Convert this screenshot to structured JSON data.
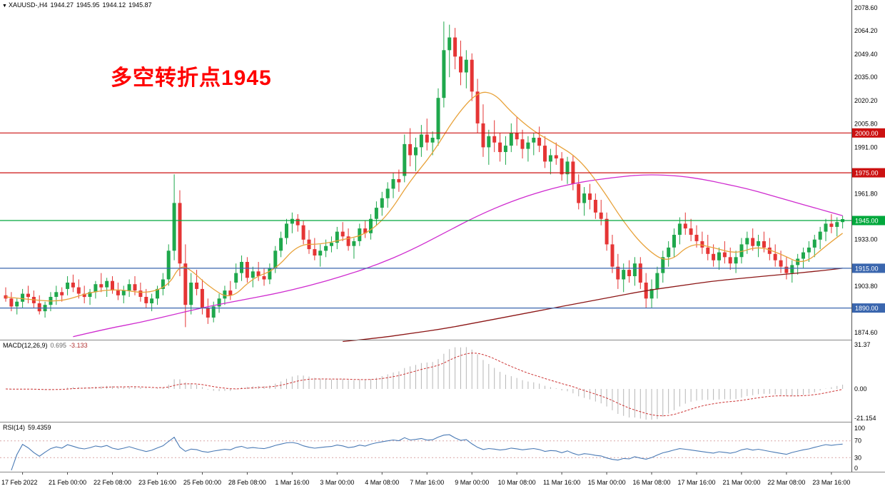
{
  "window": {
    "symbol_info": {
      "symbol": "XAUUSD-,H4",
      "open": "1944.27",
      "high": "1945.95",
      "low": "1944.12",
      "close": "1945.87"
    }
  },
  "annotation": {
    "text": "多空转折点1945",
    "color": "#ff0000"
  },
  "colors": {
    "bull": "#1fa84c",
    "bear": "#e53535",
    "hline_red": "#cc1111",
    "hline_green": "#00a83c",
    "hline_blue": "#3a66ae",
    "ma_fast": "#e8a23a",
    "ma_mid": "#cf2bcf",
    "ma_slow": "#8c1616",
    "macd_hist": "#b6b6b6",
    "macd_signal": "#cc3333",
    "rsi_line": "#4a7ab5",
    "rsi_level": "#d9a6a6",
    "axis_text": "#000000",
    "separator": "#888888"
  },
  "chart_data": {
    "type": "candlestick",
    "title": "XAUUSD H4 chart with MACD and RSI",
    "symbol": "XAUUSD",
    "timeframe": "H4",
    "price_axis": {
      "ticks": [
        2078.6,
        2064.2,
        2049.4,
        2035.0,
        2020.2,
        2005.8,
        1991.0,
        1961.8,
        1933.0,
        1903.8,
        1874.6
      ]
    },
    "hlines": [
      {
        "price": 2000.0,
        "label": "2000.00",
        "color": "#cc1111"
      },
      {
        "price": 1975.0,
        "label": "1975.00",
        "color": "#cc1111"
      },
      {
        "price": 1945.0,
        "label": "1945.00",
        "color": "#00a83c"
      },
      {
        "price": 1915.0,
        "label": "1915.00",
        "color": "#3a66ae"
      },
      {
        "price": 1890.0,
        "label": "1890.00",
        "color": "#3a66ae"
      }
    ],
    "time_labels": [
      "17 Feb 2022",
      "21 Feb 00:00",
      "22 Feb 08:00",
      "23 Feb 16:00",
      "25 Feb 00:00",
      "28 Feb 08:00",
      "1 Mar 16:00",
      "3 Mar 00:00",
      "4 Mar 08:00",
      "7 Mar 16:00",
      "9 Mar 00:00",
      "10 Mar 08:00",
      "11 Mar 16:00",
      "15 Mar 00:00",
      "16 Mar 08:00",
      "17 Mar 16:00",
      "21 Mar 00:00",
      "22 Mar 08:00",
      "23 Mar 16:00"
    ],
    "candles": [
      [
        1898,
        1903,
        1894,
        1896
      ],
      [
        1896,
        1900,
        1888,
        1891
      ],
      [
        1891,
        1896,
        1886,
        1894
      ],
      [
        1894,
        1902,
        1890,
        1899
      ],
      [
        1899,
        1904,
        1893,
        1897
      ],
      [
        1897,
        1901,
        1890,
        1893
      ],
      [
        1893,
        1898,
        1886,
        1888
      ],
      [
        1888,
        1894,
        1884,
        1892
      ],
      [
        1892,
        1900,
        1888,
        1897
      ],
      [
        1897,
        1904,
        1892,
        1900
      ],
      [
        1900,
        1903,
        1894,
        1898
      ],
      [
        1902,
        1910,
        1898,
        1906
      ],
      [
        1906,
        1911,
        1900,
        1903
      ],
      [
        1903,
        1908,
        1896,
        1899
      ],
      [
        1899,
        1904,
        1893,
        1897
      ],
      [
        1897,
        1902,
        1892,
        1900
      ],
      [
        1900,
        1907,
        1896,
        1905
      ],
      [
        1905,
        1912,
        1900,
        1903
      ],
      [
        1903,
        1909,
        1897,
        1907
      ],
      [
        1907,
        1910,
        1899,
        1901
      ],
      [
        1901,
        1906,
        1895,
        1898
      ],
      [
        1898,
        1904,
        1893,
        1901
      ],
      [
        1901,
        1908,
        1897,
        1905
      ],
      [
        1905,
        1910,
        1898,
        1901
      ],
      [
        1901,
        1906,
        1894,
        1897
      ],
      [
        1897,
        1902,
        1890,
        1893
      ],
      [
        1893,
        1899,
        1888,
        1896
      ],
      [
        1896,
        1904,
        1892,
        1902
      ],
      [
        1902,
        1912,
        1898,
        1908
      ],
      [
        1908,
        1930,
        1904,
        1926
      ],
      [
        1926,
        1974,
        1920,
        1956
      ],
      [
        1956,
        1964,
        1910,
        1918
      ],
      [
        1918,
        1930,
        1878,
        1892
      ],
      [
        1892,
        1912,
        1886,
        1906
      ],
      [
        1906,
        1914,
        1898,
        1902
      ],
      [
        1902,
        1908,
        1886,
        1890
      ],
      [
        1890,
        1896,
        1880,
        1884
      ],
      [
        1884,
        1894,
        1881,
        1891
      ],
      [
        1891,
        1899,
        1887,
        1896
      ],
      [
        1896,
        1904,
        1892,
        1901
      ],
      [
        1901,
        1907,
        1895,
        1898
      ],
      [
        1906,
        1918,
        1902,
        1912
      ],
      [
        1912,
        1923,
        1907,
        1919
      ],
      [
        1919,
        1922,
        1906,
        1909
      ],
      [
        1909,
        1916,
        1903,
        1913
      ],
      [
        1913,
        1919,
        1907,
        1910
      ],
      [
        1910,
        1915,
        1904,
        1908
      ],
      [
        1908,
        1918,
        1905,
        1915
      ],
      [
        1915,
        1929,
        1912,
        1926
      ],
      [
        1926,
        1938,
        1922,
        1934
      ],
      [
        1934,
        1946,
        1930,
        1943
      ],
      [
        1943,
        1950,
        1937,
        1946
      ],
      [
        1946,
        1949,
        1938,
        1942
      ],
      [
        1942,
        1945,
        1930,
        1933
      ],
      [
        1933,
        1939,
        1924,
        1927
      ],
      [
        1927,
        1934,
        1920,
        1923
      ],
      [
        1923,
        1930,
        1916,
        1926
      ],
      [
        1926,
        1933,
        1922,
        1929
      ],
      [
        1929,
        1935,
        1925,
        1931
      ],
      [
        1931,
        1941,
        1927,
        1938
      ],
      [
        1938,
        1944,
        1932,
        1935
      ],
      [
        1935,
        1940,
        1926,
        1929
      ],
      [
        1929,
        1934,
        1921,
        1932
      ],
      [
        1932,
        1943,
        1929,
        1940
      ],
      [
        1940,
        1945,
        1934,
        1937
      ],
      [
        1937,
        1949,
        1933,
        1946
      ],
      [
        1946,
        1957,
        1942,
        1953
      ],
      [
        1953,
        1963,
        1948,
        1959
      ],
      [
        1959,
        1969,
        1953,
        1965
      ],
      [
        1965,
        1975,
        1959,
        1971
      ],
      [
        1971,
        1977,
        1963,
        1969
      ],
      [
        1973,
        1999,
        1969,
        1993
      ],
      [
        1993,
        2003,
        1979,
        1986
      ],
      [
        1986,
        1997,
        1976,
        1991
      ],
      [
        1991,
        2005,
        1985,
        1999
      ],
      [
        1999,
        2009,
        1989,
        1994
      ],
      [
        1994,
        2001,
        1986,
        1997
      ],
      [
        1996,
        2028,
        1992,
        2022
      ],
      [
        2022,
        2070,
        2016,
        2052
      ],
      [
        2052,
        2068,
        2035,
        2060
      ],
      [
        2060,
        2066,
        2040,
        2048
      ],
      [
        2048,
        2058,
        2030,
        2038
      ],
      [
        2038,
        2052,
        2028,
        2046
      ],
      [
        2046,
        2050,
        2020,
        2026
      ],
      [
        2026,
        2034,
        2000,
        2006
      ],
      [
        2006,
        2018,
        1985,
        1991
      ],
      [
        1991,
        2002,
        1980,
        1998
      ],
      [
        1998,
        2008,
        1988,
        1994
      ],
      [
        1994,
        2000,
        1982,
        1988
      ],
      [
        1988,
        1998,
        1980,
        1992
      ],
      [
        1992,
        2006,
        1988,
        2000
      ],
      [
        2000,
        2010,
        1992,
        1996
      ],
      [
        1996,
        2002,
        1984,
        1990
      ],
      [
        1990,
        1998,
        1982,
        1994
      ],
      [
        1994,
        2000,
        1986,
        1997
      ],
      [
        1997,
        2004,
        1988,
        1992
      ],
      [
        1992,
        1998,
        1978,
        1982
      ],
      [
        1982,
        1990,
        1974,
        1986
      ],
      [
        1986,
        1994,
        1980,
        1984
      ],
      [
        1984,
        1988,
        1970,
        1974
      ],
      [
        1974,
        1985,
        1968,
        1982
      ],
      [
        1982,
        1986,
        1964,
        1968
      ],
      [
        1968,
        1974,
        1952,
        1956
      ],
      [
        1956,
        1966,
        1948,
        1962
      ],
      [
        1962,
        1968,
        1952,
        1958
      ],
      [
        1958,
        1962,
        1946,
        1950
      ],
      [
        1950,
        1958,
        1942,
        1946
      ],
      [
        1946,
        1950,
        1926,
        1930
      ],
      [
        1930,
        1936,
        1912,
        1916
      ],
      [
        1916,
        1924,
        1902,
        1908
      ],
      [
        1908,
        1918,
        1900,
        1914
      ],
      [
        1914,
        1920,
        1906,
        1910
      ],
      [
        1910,
        1922,
        1904,
        1918
      ],
      [
        1918,
        1922,
        1902,
        1906
      ],
      [
        1906,
        1912,
        1890,
        1896
      ],
      [
        1896,
        1908,
        1890,
        1902
      ],
      [
        1902,
        1916,
        1896,
        1912
      ],
      [
        1912,
        1926,
        1906,
        1922
      ],
      [
        1922,
        1932,
        1916,
        1928
      ],
      [
        1928,
        1940,
        1922,
        1936
      ],
      [
        1936,
        1947,
        1930,
        1943
      ],
      [
        1943,
        1950,
        1936,
        1940
      ],
      [
        1940,
        1946,
        1932,
        1936
      ],
      [
        1936,
        1942,
        1928,
        1932
      ],
      [
        1932,
        1938,
        1924,
        1928
      ],
      [
        1928,
        1936,
        1920,
        1924
      ],
      [
        1924,
        1930,
        1916,
        1920
      ],
      [
        1920,
        1928,
        1914,
        1925
      ],
      [
        1925,
        1932,
        1918,
        1922
      ],
      [
        1922,
        1928,
        1914,
        1918
      ],
      [
        1918,
        1926,
        1912,
        1922
      ],
      [
        1922,
        1934,
        1918,
        1930
      ],
      [
        1930,
        1938,
        1924,
        1934
      ],
      [
        1934,
        1940,
        1926,
        1929
      ],
      [
        1929,
        1936,
        1922,
        1932
      ],
      [
        1932,
        1938,
        1925,
        1928
      ],
      [
        1928,
        1934,
        1920,
        1924
      ],
      [
        1924,
        1930,
        1916,
        1920
      ],
      [
        1920,
        1926,
        1912,
        1916
      ],
      [
        1916,
        1922,
        1908,
        1912
      ],
      [
        1912,
        1920,
        1906,
        1917
      ],
      [
        1917,
        1924,
        1911,
        1921
      ],
      [
        1921,
        1928,
        1915,
        1925
      ],
      [
        1925,
        1932,
        1919,
        1928
      ],
      [
        1928,
        1936,
        1922,
        1933
      ],
      [
        1933,
        1941,
        1927,
        1938
      ],
      [
        1938,
        1946,
        1932,
        1943
      ],
      [
        1943,
        1949,
        1937,
        1941
      ],
      [
        1941,
        1947,
        1935,
        1944
      ],
      [
        1944,
        1948,
        1940,
        1945.9
      ]
    ],
    "ma_lines": [
      {
        "name": "slow",
        "color": "#8c1616",
        "points": [
          [
            60,
            1869
          ],
          [
            66,
            1871
          ],
          [
            72,
            1874
          ],
          [
            78,
            1877
          ],
          [
            84,
            1881
          ],
          [
            90,
            1885
          ],
          [
            96,
            1889
          ],
          [
            102,
            1893
          ],
          [
            108,
            1897
          ],
          [
            114,
            1901
          ],
          [
            120,
            1904
          ],
          [
            126,
            1907
          ],
          [
            132,
            1909
          ],
          [
            138,
            1911
          ],
          [
            144,
            1913
          ],
          [
            149,
            1915
          ]
        ]
      },
      {
        "name": "mid",
        "color": "#cf2bcf",
        "points": [
          [
            12,
            1872
          ],
          [
            18,
            1877
          ],
          [
            24,
            1881
          ],
          [
            30,
            1886
          ],
          [
            36,
            1891
          ],
          [
            42,
            1895
          ],
          [
            48,
            1899
          ],
          [
            54,
            1904
          ],
          [
            60,
            1910
          ],
          [
            66,
            1917
          ],
          [
            72,
            1926
          ],
          [
            78,
            1937
          ],
          [
            84,
            1948
          ],
          [
            90,
            1957
          ],
          [
            96,
            1964
          ],
          [
            102,
            1969
          ],
          [
            108,
            1972
          ],
          [
            114,
            1974
          ],
          [
            120,
            1973
          ],
          [
            124,
            1971
          ],
          [
            128,
            1968
          ],
          [
            132,
            1965
          ],
          [
            136,
            1961
          ],
          [
            140,
            1957
          ],
          [
            144,
            1953
          ],
          [
            149,
            1948
          ]
        ]
      },
      {
        "name": "fast",
        "color": "#e8a23a",
        "points": [
          [
            0,
            1897
          ],
          [
            5,
            1895
          ],
          [
            10,
            1894
          ],
          [
            15,
            1900
          ],
          [
            20,
            1902
          ],
          [
            25,
            1899
          ],
          [
            29,
            1904
          ],
          [
            31,
            1917
          ],
          [
            33,
            1914
          ],
          [
            36,
            1904
          ],
          [
            40,
            1895
          ],
          [
            44,
            1909
          ],
          [
            48,
            1914
          ],
          [
            52,
            1930
          ],
          [
            56,
            1930
          ],
          [
            60,
            1933
          ],
          [
            64,
            1936
          ],
          [
            68,
            1948
          ],
          [
            72,
            1970
          ],
          [
            76,
            1987
          ],
          [
            80,
            2010
          ],
          [
            84,
            2026
          ],
          [
            87,
            2025
          ],
          [
            90,
            2013
          ],
          [
            94,
            2001
          ],
          [
            98,
            1993
          ],
          [
            102,
            1984
          ],
          [
            106,
            1966
          ],
          [
            110,
            1944
          ],
          [
            114,
            1927
          ],
          [
            118,
            1918
          ],
          [
            122,
            1931
          ],
          [
            126,
            1928
          ],
          [
            130,
            1924
          ],
          [
            134,
            1929
          ],
          [
            138,
            1924
          ],
          [
            142,
            1917
          ],
          [
            146,
            1929
          ],
          [
            149,
            1937
          ]
        ]
      }
    ],
    "indicators": {
      "macd": {
        "label": "MACD(12,26,9)",
        "main_value": "0.695",
        "signal_value": "-3.133",
        "params": [
          12,
          26,
          9
        ],
        "axis": [
          {
            "value": 31.37,
            "label": "31.37"
          },
          {
            "value": 0,
            "label": "0.00"
          },
          {
            "value": -21.154,
            "label": "-21.154"
          }
        ]
      },
      "rsi": {
        "label": "RSI(14)",
        "value": "59.4359",
        "period": 14,
        "levels": [
          70,
          30
        ],
        "axis": [
          {
            "value": 100,
            "label": "100"
          },
          {
            "value": 70,
            "label": "70"
          },
          {
            "value": 30,
            "label": "30"
          },
          {
            "value": 0,
            "label": "0"
          }
        ]
      }
    }
  }
}
